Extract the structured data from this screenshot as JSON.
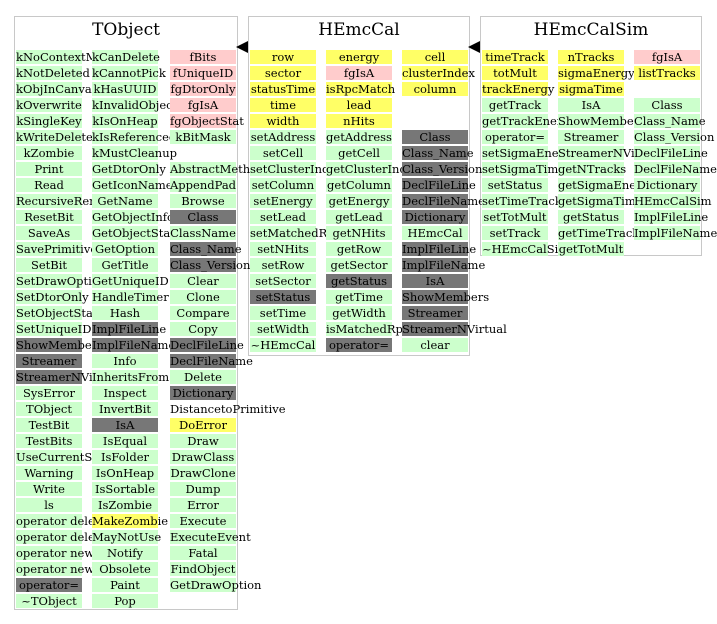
{
  "classes": [
    {
      "title": "TObject",
      "columns": [
        [
          [
            "kNoContextMenu",
            "g"
          ],
          [
            "kNotDeleted",
            "g"
          ],
          [
            "kObjInCanvas",
            "g"
          ],
          [
            "kOverwrite",
            "g"
          ],
          [
            "kSingleKey",
            "g"
          ],
          [
            "kWriteDelete",
            "g"
          ],
          [
            "kZombie",
            "g"
          ],
          [
            "Print",
            "g"
          ],
          [
            "Read",
            "g"
          ],
          [
            "RecursiveRemove",
            "g"
          ],
          [
            "ResetBit",
            "g"
          ],
          [
            "SaveAs",
            "g"
          ],
          [
            "SavePrimitive",
            "g"
          ],
          [
            "SetBit",
            "g"
          ],
          [
            "SetDrawOption",
            "g"
          ],
          [
            "SetDtorOnly",
            "g"
          ],
          [
            "SetObjectStat",
            "g"
          ],
          [
            "SetUniqueID",
            "g"
          ],
          [
            "ShowMembers",
            "d"
          ],
          [
            "Streamer",
            "d"
          ],
          [
            "StreamerNVirtual",
            "d"
          ],
          [
            "SysError",
            "g"
          ],
          [
            "TObject",
            "g"
          ],
          [
            "TestBit",
            "g"
          ],
          [
            "TestBits",
            "g"
          ],
          [
            "UseCurrentStyle",
            "g"
          ],
          [
            "Warning",
            "g"
          ],
          [
            "Write",
            "g"
          ],
          [
            "ls",
            "g"
          ],
          [
            "operator delete",
            "g"
          ],
          [
            "operator delete[]",
            "g"
          ],
          [
            "operator new",
            "g"
          ],
          [
            "operator new[]",
            "g"
          ],
          [
            "operator=",
            "d"
          ],
          [
            "~TObject",
            "g"
          ]
        ],
        [
          [
            "kCanDelete",
            "g"
          ],
          [
            "kCannotPick",
            "g"
          ],
          [
            "kHasUUID",
            "g"
          ],
          [
            "kInvalidObject",
            "g"
          ],
          [
            "kIsOnHeap",
            "g"
          ],
          [
            "kIsReferenced",
            "g"
          ],
          [
            "kMustCleanup",
            "g"
          ],
          [
            "GetDtorOnly",
            "g"
          ],
          [
            "GetIconName",
            "g"
          ],
          [
            "GetName",
            "g"
          ],
          [
            "GetObjectInfo",
            "g"
          ],
          [
            "GetObjectStat",
            "g"
          ],
          [
            "GetOption",
            "g"
          ],
          [
            "GetTitle",
            "g"
          ],
          [
            "GetUniqueID",
            "g"
          ],
          [
            "HandleTimer",
            "g"
          ],
          [
            "Hash",
            "g"
          ],
          [
            "ImplFileLine",
            "d"
          ],
          [
            "ImplFileName",
            "d"
          ],
          [
            "Info",
            "g"
          ],
          [
            "InheritsFrom",
            "g"
          ],
          [
            "Inspect",
            "g"
          ],
          [
            "InvertBit",
            "g"
          ],
          [
            "IsA",
            "d"
          ],
          [
            "IsEqual",
            "g"
          ],
          [
            "IsFolder",
            "g"
          ],
          [
            "IsOnHeap",
            "g"
          ],
          [
            "IsSortable",
            "g"
          ],
          [
            "IsZombie",
            "g"
          ],
          [
            "MakeZombie",
            "y"
          ],
          [
            "MayNotUse",
            "g"
          ],
          [
            "Notify",
            "g"
          ],
          [
            "Obsolete",
            "g"
          ],
          [
            "Paint",
            "g"
          ],
          [
            "Pop",
            "g"
          ]
        ],
        [
          [
            "fBits",
            "p"
          ],
          [
            "fUniqueID",
            "p"
          ],
          [
            "fgDtorOnly",
            "p"
          ],
          [
            "fgIsA",
            "p"
          ],
          [
            "fgObjectStat",
            "p"
          ],
          [
            "kBitMask",
            "g"
          ],
          [
            "",
            ""
          ],
          [
            "AbstractMethod",
            "g"
          ],
          [
            "AppendPad",
            "g"
          ],
          [
            "Browse",
            "g"
          ],
          [
            "Class",
            "d"
          ],
          [
            "ClassName",
            "g"
          ],
          [
            "Class_Name",
            "d"
          ],
          [
            "Class_Version",
            "d"
          ],
          [
            "Clear",
            "g"
          ],
          [
            "Clone",
            "g"
          ],
          [
            "Compare",
            "g"
          ],
          [
            "Copy",
            "g"
          ],
          [
            "DeclFileLine",
            "d"
          ],
          [
            "DeclFileName",
            "d"
          ],
          [
            "Delete",
            "g"
          ],
          [
            "Dictionary",
            "d"
          ],
          [
            "DistancetoPrimitive",
            "w"
          ],
          [
            "DoError",
            "y"
          ],
          [
            "Draw",
            "g"
          ],
          [
            "DrawClass",
            "g"
          ],
          [
            "DrawClone",
            "g"
          ],
          [
            "Dump",
            "g"
          ],
          [
            "Error",
            "g"
          ],
          [
            "Execute",
            "g"
          ],
          [
            "ExecuteEvent",
            "g"
          ],
          [
            "Fatal",
            "g"
          ],
          [
            "FindObject",
            "g"
          ],
          [
            "GetDrawOption",
            "g"
          ]
        ]
      ]
    },
    {
      "title": "HEmcCal",
      "columns": [
        [
          [
            "row",
            "y"
          ],
          [
            "sector",
            "y"
          ],
          [
            "statusTime",
            "y"
          ],
          [
            "time",
            "y"
          ],
          [
            "width",
            "y"
          ],
          [
            "setAddress",
            "g"
          ],
          [
            "setCell",
            "g"
          ],
          [
            "setClusterIndex",
            "g"
          ],
          [
            "setColumn",
            "g"
          ],
          [
            "setEnergy",
            "g"
          ],
          [
            "setLead",
            "g"
          ],
          [
            "setMatchedRpc",
            "g"
          ],
          [
            "setNHits",
            "g"
          ],
          [
            "setRow",
            "g"
          ],
          [
            "setSector",
            "g"
          ],
          [
            "setStatus",
            "d"
          ],
          [
            "setTime",
            "g"
          ],
          [
            "setWidth",
            "g"
          ],
          [
            "~HEmcCal",
            "g"
          ]
        ],
        [
          [
            "energy",
            "y"
          ],
          [
            "fgIsA",
            "p"
          ],
          [
            "isRpcMatch",
            "y"
          ],
          [
            "lead",
            "y"
          ],
          [
            "nHits",
            "y"
          ],
          [
            "getAddress",
            "g"
          ],
          [
            "getCell",
            "g"
          ],
          [
            "getClusterIndex",
            "g"
          ],
          [
            "getColumn",
            "g"
          ],
          [
            "getEnergy",
            "g"
          ],
          [
            "getLead",
            "g"
          ],
          [
            "getNHits",
            "g"
          ],
          [
            "getRow",
            "g"
          ],
          [
            "getSector",
            "g"
          ],
          [
            "getStatus",
            "d"
          ],
          [
            "getTime",
            "g"
          ],
          [
            "getWidth",
            "g"
          ],
          [
            "isMatchedRpc",
            "g"
          ],
          [
            "operator=",
            "d"
          ]
        ],
        [
          [
            "cell",
            "y"
          ],
          [
            "clusterIndex",
            "y"
          ],
          [
            "column",
            "y"
          ],
          [
            "",
            ""
          ],
          [
            "",
            ""
          ],
          [
            "Class",
            "d"
          ],
          [
            "Class_Name",
            "d"
          ],
          [
            "Class_Version",
            "d"
          ],
          [
            "DeclFileLine",
            "d"
          ],
          [
            "DeclFileName",
            "d"
          ],
          [
            "Dictionary",
            "d"
          ],
          [
            "HEmcCal",
            "g"
          ],
          [
            "ImplFileLine",
            "d"
          ],
          [
            "ImplFileName",
            "d"
          ],
          [
            "IsA",
            "d"
          ],
          [
            "ShowMembers",
            "d"
          ],
          [
            "Streamer",
            "d"
          ],
          [
            "StreamerNVirtual",
            "d"
          ],
          [
            "clear",
            "g"
          ]
        ]
      ]
    },
    {
      "title": "HEmcCalSim",
      "columns": [
        [
          [
            "timeTrack",
            "y"
          ],
          [
            "totMult",
            "y"
          ],
          [
            "trackEnergy",
            "y"
          ],
          [
            "getTrack",
            "g"
          ],
          [
            "getTrackEnergy",
            "g"
          ],
          [
            "operator=",
            "g"
          ],
          [
            "setSigmaEnergy",
            "g"
          ],
          [
            "setSigmaTime",
            "g"
          ],
          [
            "setStatus",
            "g"
          ],
          [
            "setTimeTrack",
            "g"
          ],
          [
            "setTotMult",
            "g"
          ],
          [
            "setTrack",
            "g"
          ],
          [
            "~HEmcCalSim",
            "g"
          ]
        ],
        [
          [
            "nTracks",
            "y"
          ],
          [
            "sigmaEnergy",
            "y"
          ],
          [
            "sigmaTime",
            "y"
          ],
          [
            "IsA",
            "g"
          ],
          [
            "ShowMembers",
            "g"
          ],
          [
            "Streamer",
            "g"
          ],
          [
            "StreamerNVirtual",
            "g"
          ],
          [
            "getNTracks",
            "g"
          ],
          [
            "getSigmaEnergy",
            "g"
          ],
          [
            "getSigmaTime",
            "g"
          ],
          [
            "getStatus",
            "g"
          ],
          [
            "getTimeTrack",
            "g"
          ],
          [
            "getTotMult",
            "g"
          ]
        ],
        [
          [
            "fgIsA",
            "p"
          ],
          [
            "listTracks",
            "y"
          ],
          [
            "",
            ""
          ],
          [
            "Class",
            "g"
          ],
          [
            "Class_Name",
            "g"
          ],
          [
            "Class_Version",
            "g"
          ],
          [
            "DeclFileLine",
            "g"
          ],
          [
            "DeclFileName",
            "g"
          ],
          [
            "Dictionary",
            "g"
          ],
          [
            "HEmcCalSim",
            "g"
          ],
          [
            "ImplFileLine",
            "g"
          ],
          [
            "ImplFileName",
            "g"
          ]
        ]
      ]
    }
  ],
  "colors": {
    "g": "#ccffcc",
    "y": "#ffff66",
    "p": "#ffcccc",
    "d": "#777777",
    "border": "#c8c8c8"
  }
}
